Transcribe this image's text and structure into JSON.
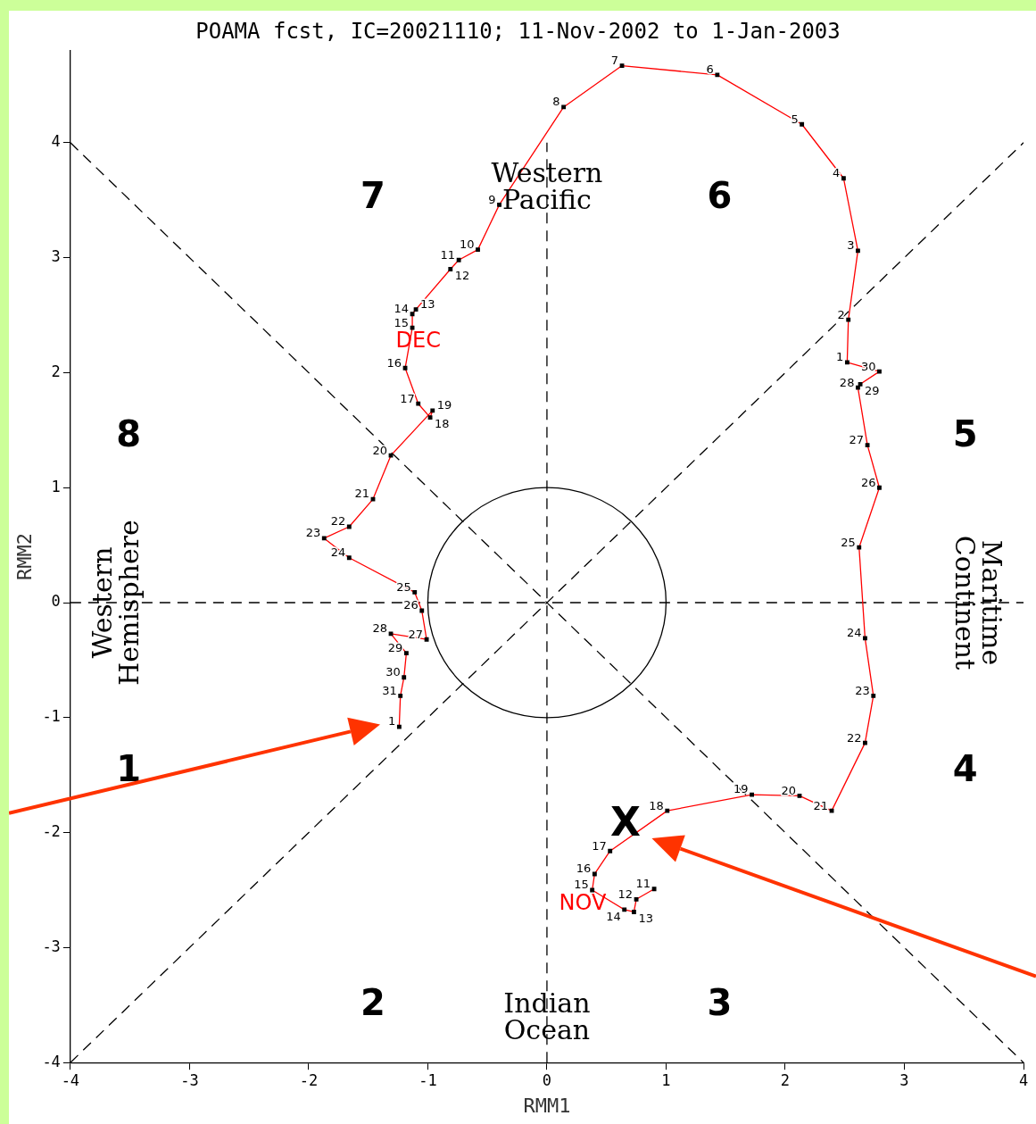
{
  "chart_data": {
    "type": "line",
    "title": "POAMA fcst, IC=20021110; 11-Nov-2002 to 1-Jan-2003",
    "xlabel": "RMM1",
    "ylabel": "RMM2",
    "xlim": [
      -4,
      4
    ],
    "ylim": [
      -4,
      4.8
    ],
    "xticks": [
      -4,
      -3,
      -2,
      -1,
      0,
      1,
      2,
      3,
      4
    ],
    "yticks": [
      -4,
      -3,
      -2,
      -1,
      0,
      1,
      2,
      3,
      4
    ],
    "grid": false,
    "legend": false,
    "marker": "square",
    "series": [
      {
        "color": "#ff0000",
        "x": [
          0.9,
          0.75,
          0.73,
          0.65,
          0.38,
          0.4,
          0.53,
          1.01,
          1.72,
          2.12,
          2.39,
          2.67,
          2.74,
          2.67,
          2.62,
          2.79,
          2.69,
          2.61,
          2.63,
          2.79,
          2.52,
          2.53,
          2.61,
          2.49,
          2.14,
          1.43,
          0.63,
          0.14,
          -0.4,
          -0.58,
          -0.74,
          -0.81,
          -1.1,
          -1.13,
          -1.13,
          -1.19,
          -1.08,
          -0.98,
          -0.96,
          -1.31,
          -1.46,
          -1.66,
          -1.87,
          -1.66,
          -1.11,
          -1.05,
          -1.01,
          -1.31,
          -1.18,
          -1.2,
          -1.23,
          -1.24
        ],
        "values": [
          -2.49,
          -2.58,
          -2.69,
          -2.67,
          -2.5,
          -2.36,
          -2.16,
          -1.81,
          -1.67,
          -1.68,
          -1.81,
          -1.22,
          -0.81,
          -0.31,
          0.48,
          1.0,
          1.37,
          1.87,
          1.9,
          2.01,
          2.09,
          2.46,
          3.06,
          3.69,
          4.16,
          4.59,
          4.67,
          4.31,
          3.46,
          3.07,
          2.98,
          2.9,
          2.55,
          2.51,
          2.39,
          2.04,
          1.73,
          1.61,
          1.67,
          1.28,
          0.9,
          0.66,
          0.56,
          0.39,
          0.09,
          -0.07,
          -0.32,
          -0.27,
          -0.44,
          -0.65,
          -0.81,
          -1.08
        ]
      },
      {
        "type": "line",
        "color": "#000000",
        "line_style": "dashed",
        "marker": "none",
        "x": [
          -4,
          4
        ],
        "values": [
          -4,
          4
        ]
      },
      {
        "type": "line",
        "color": "#000000",
        "line_style": "dashed",
        "marker": "none",
        "x": [
          -4,
          4
        ],
        "values": [
          4,
          -4
        ]
      },
      {
        "type": "line",
        "color": "#000000",
        "line_style": "dashed",
        "marker": "none",
        "x": [
          -4,
          4
        ],
        "values": [
          0,
          0
        ]
      }
    ],
    "ref_lines": [
      {
        "axis": "x",
        "value": 0,
        "color": "#000000",
        "line_style": "dashed"
      }
    ],
    "annotations": [
      "7",
      "6",
      "8",
      "5",
      "1",
      "4",
      "2",
      "3",
      "Western\nPacific",
      "Indian\nOcean",
      "Western\nHemisphere",
      "Maritime\nContinent",
      "X",
      "NOV",
      "DEC",
      {
        "text": "11",
        "x": 0.9,
        "y": -2.49
      },
      {
        "text": "12",
        "x": 0.75,
        "y": -2.58
      },
      {
        "text": "13",
        "x": 0.73,
        "y": -2.69
      },
      {
        "text": "14",
        "x": 0.65,
        "y": -2.67
      },
      {
        "text": "15",
        "x": 0.38,
        "y": -2.5
      },
      {
        "text": "16",
        "x": 0.4,
        "y": -2.36
      },
      {
        "text": "17",
        "x": 0.53,
        "y": -2.16
      },
      {
        "text": "18",
        "x": 1.01,
        "y": -1.81
      },
      {
        "text": "19",
        "x": 1.72,
        "y": -1.67
      },
      {
        "text": "20",
        "x": 2.12,
        "y": -1.68
      },
      {
        "text": "21",
        "x": 2.39,
        "y": -1.81
      },
      {
        "text": "22",
        "x": 2.67,
        "y": -1.22
      },
      {
        "text": "23",
        "x": 2.74,
        "y": -0.81
      },
      {
        "text": "24",
        "x": 2.67,
        "y": -0.31
      },
      {
        "text": "25",
        "x": 2.62,
        "y": 0.48
      },
      {
        "text": "26",
        "x": 2.79,
        "y": 1.0
      },
      {
        "text": "27",
        "x": 2.69,
        "y": 1.37
      },
      {
        "text": "28",
        "x": 2.61,
        "y": 1.87
      },
      {
        "text": "29",
        "x": 2.63,
        "y": 1.9
      },
      {
        "text": "30",
        "x": 2.79,
        "y": 2.01
      },
      {
        "text": "1",
        "x": 2.52,
        "y": 2.09
      },
      {
        "text": "2",
        "x": 2.53,
        "y": 2.46
      },
      {
        "text": "3",
        "x": 2.61,
        "y": 3.06
      },
      {
        "text": "4",
        "x": 2.49,
        "y": 3.69
      },
      {
        "text": "5",
        "x": 2.14,
        "y": 4.16
      },
      {
        "text": "6",
        "x": 1.43,
        "y": 4.59
      },
      {
        "text": "7",
        "x": 0.63,
        "y": 4.67
      },
      {
        "text": "8",
        "x": 0.14,
        "y": 4.31
      },
      {
        "text": "9",
        "x": -0.4,
        "y": 3.46
      },
      {
        "text": "10",
        "x": -0.58,
        "y": 3.07
      },
      {
        "text": "11",
        "x": -0.74,
        "y": 2.98
      },
      {
        "text": "12",
        "x": -0.81,
        "y": 2.9
      },
      {
        "text": "13",
        "x": -1.1,
        "y": 2.55
      },
      {
        "text": "14",
        "x": -1.13,
        "y": 2.51
      },
      {
        "text": "15",
        "x": -1.13,
        "y": 2.39
      },
      {
        "text": "16",
        "x": -1.19,
        "y": 2.04
      },
      {
        "text": "17",
        "x": -1.08,
        "y": 1.73
      },
      {
        "text": "18",
        "x": -0.98,
        "y": 1.61
      },
      {
        "text": "19",
        "x": -0.96,
        "y": 1.67
      },
      {
        "text": "20",
        "x": -1.31,
        "y": 1.28
      },
      {
        "text": "21",
        "x": -1.46,
        "y": 0.9
      },
      {
        "text": "22",
        "x": -1.66,
        "y": 0.66
      },
      {
        "text": "23",
        "x": -1.87,
        "y": 0.56
      },
      {
        "text": "24",
        "x": -1.66,
        "y": 0.39
      },
      {
        "text": "25",
        "x": -1.11,
        "y": 0.09
      },
      {
        "text": "26",
        "x": -1.05,
        "y": -0.07
      },
      {
        "text": "27",
        "x": -1.01,
        "y": -0.32
      },
      {
        "text": "28",
        "x": -1.31,
        "y": -0.27
      },
      {
        "text": "29",
        "x": -1.18,
        "y": -0.44
      },
      {
        "text": "30",
        "x": -1.2,
        "y": -0.65
      },
      {
        "text": "31",
        "x": -1.23,
        "y": -0.81
      },
      {
        "text": "1",
        "x": -1.24,
        "y": -1.08
      }
    ]
  }
}
